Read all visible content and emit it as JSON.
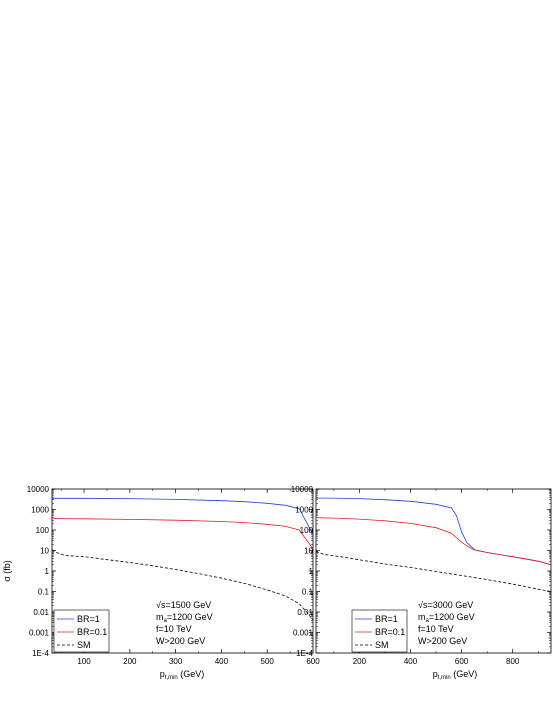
{
  "chart_data": [
    {
      "type": "line",
      "xlabel": "p",
      "xlabel_sub": "t,min",
      "xlabel_unit": "(GeV)",
      "ylabel": "σ (fb)",
      "yscale": "log",
      "xlim": [
        30,
        600
      ],
      "ylim": [
        0.0001,
        10000
      ],
      "xticks": [
        {
          "v": 100,
          "l": "100"
        },
        {
          "v": 200,
          "l": "200"
        },
        {
          "v": 300,
          "l": "300"
        },
        {
          "v": 400,
          "l": "400"
        },
        {
          "v": 500,
          "l": "500"
        },
        {
          "v": 600,
          "l": "600"
        }
      ],
      "yticks": [
        {
          "v": 10000,
          "l": "10000"
        },
        {
          "v": 1000,
          "l": "1000"
        },
        {
          "v": 100,
          "l": "100"
        },
        {
          "v": 10,
          "l": "10"
        },
        {
          "v": 1,
          "l": "1"
        },
        {
          "v": 0.1,
          "l": "0.1"
        },
        {
          "v": 0.01,
          "l": "0.01"
        },
        {
          "v": 0.001,
          "l": "0.001"
        },
        {
          "v": 0.0001,
          "l": "1E-4"
        }
      ],
      "annotations": [
        "√s=1500 GeV",
        "m",
        "a",
        "=1200 GeV",
        "f=10 TeV",
        "W>200 GeV"
      ],
      "series": [
        {
          "name": "BR=1",
          "color": "#1f3fd8",
          "dash": false,
          "x": [
            30,
            100,
            200,
            300,
            400,
            450,
            500,
            540,
            570,
            600
          ],
          "y": [
            3500,
            3500,
            3400,
            3100,
            2700,
            2400,
            2000,
            1600,
            1100,
            60
          ]
        },
        {
          "name": "BR=0.1",
          "color": "#e02020",
          "dash": false,
          "x": [
            30,
            100,
            200,
            300,
            400,
            450,
            500,
            540,
            570,
            600
          ],
          "y": [
            360,
            350,
            330,
            300,
            260,
            230,
            190,
            150,
            100,
            12
          ]
        },
        {
          "name": "SM",
          "color": "#000000",
          "dash": true,
          "x": [
            30,
            40,
            55,
            70,
            100,
            150,
            200,
            250,
            300,
            350,
            400,
            450,
            500,
            540,
            570,
            590,
            600
          ],
          "y": [
            11,
            8,
            6,
            5.5,
            5,
            3.6,
            2.6,
            1.8,
            1.2,
            0.75,
            0.45,
            0.25,
            0.12,
            0.06,
            0.025,
            0.008,
            0.004
          ]
        }
      ]
    },
    {
      "type": "line",
      "xlabel": "p",
      "xlabel_sub": "t,min",
      "xlabel_unit": "(GeV)",
      "ylabel": "",
      "yscale": "log",
      "xlim": [
        30,
        950
      ],
      "ylim": [
        0.0001,
        10000
      ],
      "xticks": [
        {
          "v": 200,
          "l": "200"
        },
        {
          "v": 400,
          "l": "400"
        },
        {
          "v": 600,
          "l": "600"
        },
        {
          "v": 800,
          "l": "800"
        }
      ],
      "yticks": [
        {
          "v": 10000,
          "l": "10000"
        },
        {
          "v": 1000,
          "l": "1000"
        },
        {
          "v": 100,
          "l": "100"
        },
        {
          "v": 10,
          "l": "10"
        },
        {
          "v": 1,
          "l": "1"
        },
        {
          "v": 0.1,
          "l": "0.1"
        },
        {
          "v": 0.01,
          "l": "0.01"
        },
        {
          "v": 0.001,
          "l": "0.001"
        },
        {
          "v": 0.0001,
          "l": "1E-4"
        }
      ],
      "annotations": [
        "√s=3000 GeV",
        "m",
        "a",
        "=1200 GeV",
        "f=10 TeV",
        "W>200 GeV"
      ],
      "series": [
        {
          "name": "BR=1",
          "color": "#1f3fd8",
          "dash": false,
          "x": [
            30,
            100,
            200,
            300,
            400,
            500,
            560,
            580,
            600,
            620,
            650,
            700,
            800,
            900,
            950
          ],
          "y": [
            3600,
            3600,
            3400,
            3000,
            2500,
            1800,
            1200,
            500,
            80,
            25,
            11,
            8,
            5,
            3,
            2
          ]
        },
        {
          "name": "BR=0.1",
          "color": "#e02020",
          "dash": false,
          "x": [
            30,
            100,
            200,
            300,
            400,
            500,
            560,
            600,
            640,
            660,
            700,
            800,
            900,
            950
          ],
          "y": [
            400,
            380,
            340,
            280,
            210,
            130,
            70,
            25,
            12,
            10,
            8,
            5,
            3,
            2
          ]
        },
        {
          "name": "SM",
          "color": "#000000",
          "dash": true,
          "x": [
            30,
            60,
            100,
            150,
            200,
            300,
            400,
            500,
            600,
            700,
            800,
            900,
            950
          ],
          "y": [
            9,
            6.5,
            5.5,
            4.5,
            3.5,
            2.2,
            1.5,
            0.95,
            0.6,
            0.38,
            0.23,
            0.13,
            0.1
          ]
        }
      ]
    }
  ]
}
